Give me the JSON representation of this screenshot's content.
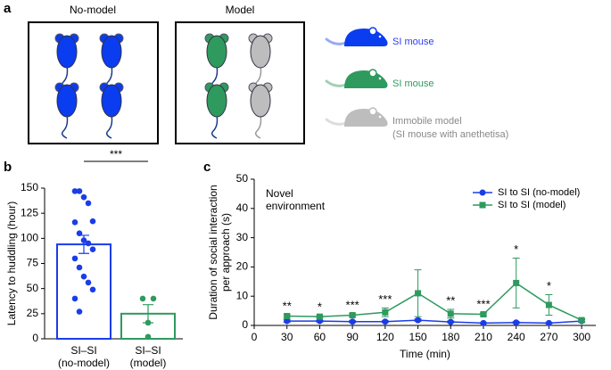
{
  "panels": [
    "a",
    "b",
    "c"
  ],
  "diagram": {
    "groups": [
      {
        "title": "No-model"
      },
      {
        "title": "Model"
      }
    ],
    "legend": [
      "SI mouse",
      "SI mouse",
      "Immobile model",
      "(SI mouse with anethetisa)"
    ]
  },
  "chart_data": [
    {
      "type": "bar",
      "categories": [
        [
          "SI–SI",
          "(no-model)"
        ],
        [
          "SI–SI",
          "(model)"
        ]
      ],
      "values": [
        94,
        25
      ],
      "errors": [
        9,
        9
      ],
      "colors": [
        "#1a3de8",
        "#2e9a5e"
      ],
      "points": [
        [
          147,
          147,
          141,
          135,
          117,
          116,
          105,
          98,
          95,
          89,
          80,
          71,
          62,
          56,
          49,
          40,
          27
        ],
        [
          40,
          40,
          16,
          2
        ]
      ],
      "ylabel": "Latency to huddling (hour)",
      "ylim": [
        0,
        150
      ],
      "yticks": [
        0,
        25,
        50,
        75,
        100,
        125,
        150
      ],
      "annotation": "***"
    },
    {
      "type": "line",
      "x": [
        30,
        60,
        90,
        120,
        150,
        180,
        210,
        240,
        270,
        300
      ],
      "series": [
        {
          "name": "SI to SI (no-model)",
          "color": "#1a3de8",
          "marker": "circle",
          "values": [
            1.5,
            1.5,
            1.3,
            1.3,
            1.8,
            1.2,
            0.8,
            1.0,
            0.8,
            1.5
          ],
          "errors": [
            0.4,
            0.3,
            0.3,
            0.3,
            0.4,
            0.3,
            0.2,
            0.3,
            0.2,
            0.4
          ]
        },
        {
          "name": "SI to SI (model)",
          "color": "#2e9a5e",
          "marker": "square",
          "values": [
            3.2,
            3.0,
            3.5,
            4.5,
            11,
            4,
            3.8,
            14.5,
            7,
            1.8
          ],
          "errors": [
            0.5,
            0.3,
            0.5,
            1.5,
            8,
            1.5,
            0.5,
            8.5,
            3.5,
            0.5
          ]
        }
      ],
      "xlabel": "Time (min)",
      "ylabel": [
        "Duration of social interaction",
        "per approach (s)"
      ],
      "annotation": [
        "Novel",
        "environment"
      ],
      "significance": [
        {
          "x": 30,
          "label": "**"
        },
        {
          "x": 60,
          "label": "*"
        },
        {
          "x": 90,
          "label": "***"
        },
        {
          "x": 120,
          "label": "***"
        },
        {
          "x": 180,
          "label": "**"
        },
        {
          "x": 210,
          "label": "***"
        },
        {
          "x": 240,
          "label": "*"
        },
        {
          "x": 270,
          "label": "*"
        }
      ],
      "xlim": [
        0,
        313
      ],
      "xticks": [
        0,
        30,
        60,
        90,
        120,
        150,
        180,
        210,
        240,
        270,
        300
      ],
      "ylim": [
        0,
        50
      ],
      "yticks": [
        0,
        10,
        20,
        30,
        40,
        50
      ]
    }
  ]
}
